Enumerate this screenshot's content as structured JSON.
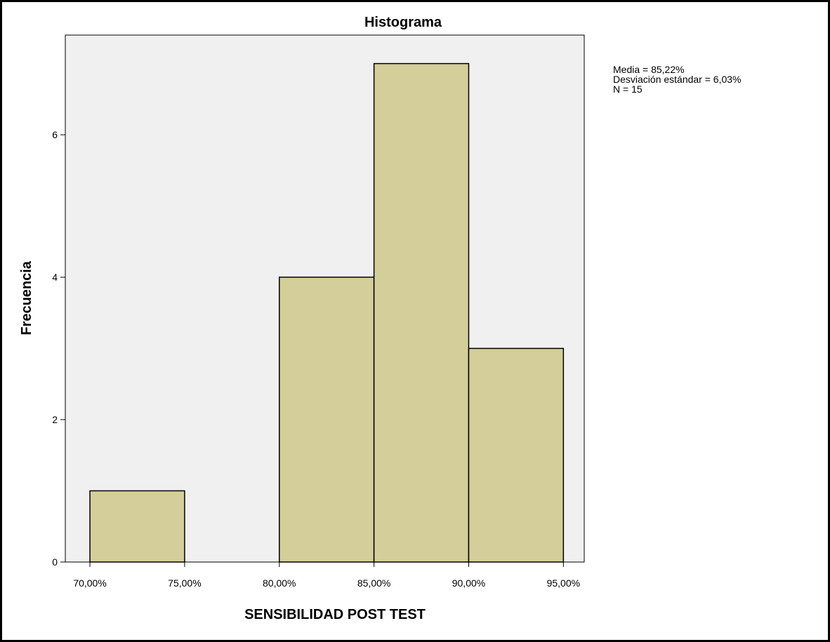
{
  "chart_data": {
    "type": "bar",
    "title": "Histograma",
    "xlabel": "SENSIBILIDAD POST TEST",
    "ylabel": "Frecuencia",
    "bins": [
      {
        "start": 70,
        "end": 75,
        "count": 1
      },
      {
        "start": 75,
        "end": 80,
        "count": 0
      },
      {
        "start": 80,
        "end": 85,
        "count": 4
      },
      {
        "start": 85,
        "end": 90,
        "count": 7
      },
      {
        "start": 90,
        "end": 95,
        "count": 3
      }
    ],
    "xticks": [
      {
        "value": 70,
        "label": "70,00%"
      },
      {
        "value": 75,
        "label": "75,00%"
      },
      {
        "value": 80,
        "label": "80,00%"
      },
      {
        "value": 85,
        "label": "85,00%"
      },
      {
        "value": 90,
        "label": "90,00%"
      },
      {
        "value": 95,
        "label": "95,00%"
      }
    ],
    "yticks": [
      {
        "value": 0,
        "label": "0"
      },
      {
        "value": 2,
        "label": "2"
      },
      {
        "value": 4,
        "label": "4"
      },
      {
        "value": 6,
        "label": "6"
      }
    ],
    "xlim": [
      68.7,
      96.1
    ],
    "ylim": [
      0,
      7.4
    ],
    "stats": [
      "Media = 85,22%",
      "Desviación estándar = 6,03%",
      "N = 15"
    ],
    "colors": {
      "bar_fill": "#d3ce9a",
      "bar_stroke": "#000000",
      "plot_background": "#f0f0f0"
    },
    "grid": false,
    "legend": "none"
  }
}
